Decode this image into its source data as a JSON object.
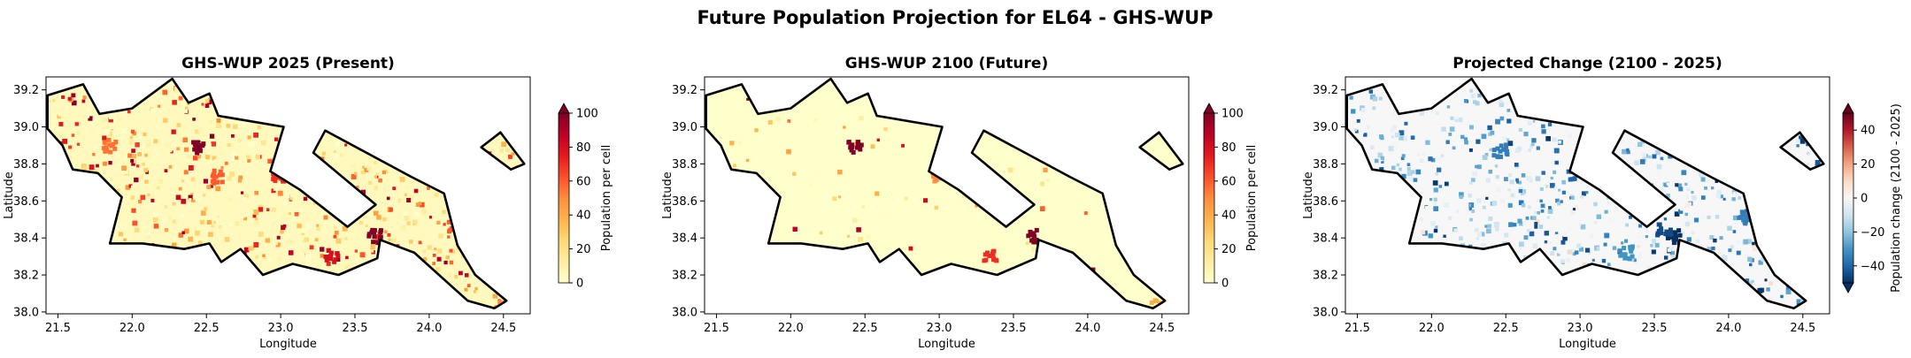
{
  "figure": {
    "suptitle": "Future Population Projection for EL64 - GHS-WUP"
  },
  "chart_data": [
    {
      "type": "heatmap",
      "title": "GHS-WUP 2025 (Present)",
      "xlabel": "Longitude",
      "ylabel": "Latitude",
      "xlim": [
        21.42,
        24.68
      ],
      "ylim": [
        37.99,
        39.27
      ],
      "xticks": [
        21.5,
        22.0,
        22.5,
        23.0,
        23.5,
        24.0,
        24.5
      ],
      "xtick_labels": [
        "21.5",
        "22.0",
        "22.5",
        "23.0",
        "23.5",
        "24.0",
        "24.5"
      ],
      "yticks": [
        38.0,
        38.2,
        38.4,
        38.6,
        38.8,
        39.0,
        39.2
      ],
      "ytick_labels": [
        "38.0",
        "38.2",
        "38.4",
        "38.6",
        "38.8",
        "39.0",
        "39.2"
      ],
      "colormap": "YlOrRd",
      "colorbar": {
        "label": "Population per cell",
        "range": [
          0,
          100
        ],
        "ticks": [
          0,
          20,
          40,
          60,
          80,
          100
        ],
        "tick_labels": [
          "0",
          "20",
          "40",
          "60",
          "80",
          "100"
        ],
        "extend": "max"
      },
      "hotspots": [
        {
          "lon": 23.62,
          "lat": 38.42,
          "value": 100
        },
        {
          "lon": 22.42,
          "lat": 38.9,
          "value": 100
        },
        {
          "lon": 23.33,
          "lat": 38.31,
          "value": 80
        },
        {
          "lon": 22.97,
          "lat": 38.75,
          "value": 70
        },
        {
          "lon": 22.55,
          "lat": 38.74,
          "value": 60
        },
        {
          "lon": 24.16,
          "lat": 38.48,
          "value": 60
        },
        {
          "lon": 21.83,
          "lat": 38.91,
          "value": 55
        },
        {
          "lon": 24.46,
          "lat": 38.04,
          "value": 50
        }
      ]
    },
    {
      "type": "heatmap",
      "title": "GHS-WUP 2100 (Future)",
      "xlabel": "Longitude",
      "ylabel": "Latitude",
      "xlim": [
        21.42,
        24.68
      ],
      "ylim": [
        37.99,
        39.27
      ],
      "xticks": [
        21.5,
        22.0,
        22.5,
        23.0,
        23.5,
        24.0,
        24.5
      ],
      "xtick_labels": [
        "21.5",
        "22.0",
        "22.5",
        "23.0",
        "23.5",
        "24.0",
        "24.5"
      ],
      "yticks": [
        38.0,
        38.2,
        38.4,
        38.6,
        38.8,
        39.0,
        39.2
      ],
      "ytick_labels": [
        "38.0",
        "38.2",
        "38.4",
        "38.6",
        "38.8",
        "39.0",
        "39.2"
      ],
      "colormap": "YlOrRd",
      "colorbar": {
        "label": "Population per cell",
        "range": [
          0,
          100
        ],
        "ticks": [
          0,
          20,
          40,
          60,
          80,
          100
        ],
        "tick_labels": [
          "0",
          "20",
          "40",
          "60",
          "80",
          "100"
        ],
        "extend": "max"
      },
      "hotspots": [
        {
          "lon": 23.62,
          "lat": 38.42,
          "value": 100
        },
        {
          "lon": 22.42,
          "lat": 38.9,
          "value": 100
        },
        {
          "lon": 23.33,
          "lat": 38.31,
          "value": 70
        },
        {
          "lon": 22.97,
          "lat": 38.75,
          "value": 50
        },
        {
          "lon": 24.46,
          "lat": 38.04,
          "value": 40
        }
      ]
    },
    {
      "type": "heatmap",
      "title": "Projected Change (2100 - 2025)",
      "xlabel": "Longitude",
      "ylabel": "Latitude",
      "xlim": [
        21.42,
        24.68
      ],
      "ylim": [
        37.99,
        39.27
      ],
      "xticks": [
        21.5,
        22.0,
        22.5,
        23.0,
        23.5,
        24.0,
        24.5
      ],
      "xtick_labels": [
        "21.5",
        "22.0",
        "22.5",
        "23.0",
        "23.5",
        "24.0",
        "24.5"
      ],
      "yticks": [
        38.0,
        38.2,
        38.4,
        38.6,
        38.8,
        39.0,
        39.2
      ],
      "ytick_labels": [
        "38.0",
        "38.2",
        "38.4",
        "38.6",
        "38.8",
        "39.0",
        "39.2"
      ],
      "colormap": "RdBu_r",
      "colorbar": {
        "label": "Population change (2100 - 2025)",
        "range": [
          -50,
          50
        ],
        "ticks": [
          -40,
          -20,
          0,
          20,
          40
        ],
        "tick_labels": [
          "−40",
          "−20",
          "0",
          "20",
          "40"
        ],
        "extend": "both"
      },
      "hotspots": [
        {
          "lon": 23.62,
          "lat": 38.42,
          "value": -50
        },
        {
          "lon": 23.55,
          "lat": 38.46,
          "value": -45
        },
        {
          "lon": 22.95,
          "lat": 38.76,
          "value": -40
        },
        {
          "lon": 22.45,
          "lat": 38.88,
          "value": -35
        },
        {
          "lon": 24.1,
          "lat": 38.52,
          "value": -35
        },
        {
          "lon": 23.3,
          "lat": 38.33,
          "value": -30
        }
      ]
    }
  ]
}
